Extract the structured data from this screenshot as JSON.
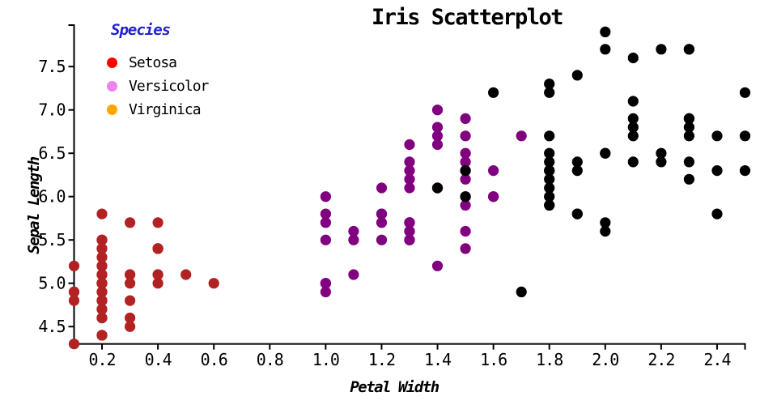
{
  "title": "Iris Scatterplot",
  "legend": {
    "title": "Species",
    "title_color": "#2222CC",
    "items": [
      {
        "label": "Setosa",
        "marker_color": "#FF0000"
      },
      {
        "label": "Versicolor",
        "marker_color": "#EE82EE"
      },
      {
        "label": "Virginica",
        "marker_color": "#FFA500"
      }
    ]
  },
  "chart_data": {
    "type": "scatter",
    "title": "Iris Scatterplot",
    "xlabel": "Petal Width",
    "ylabel": "Sepal Length",
    "xlim": [
      0.1,
      2.5
    ],
    "ylim": [
      4.3,
      7.9
    ],
    "xticks": [
      0.2,
      0.4,
      0.6,
      0.8,
      1.0,
      1.2,
      1.4,
      1.6,
      1.8,
      2.0,
      2.2,
      2.4
    ],
    "xtick_labels": [
      "0.2",
      "0.4",
      "0.6",
      "0.8",
      "1.0",
      "1.2",
      "1.4",
      "1.6",
      "1.8",
      "2.0",
      "2.2",
      "2.4"
    ],
    "yticks": [
      4.5,
      5.0,
      5.5,
      6.0,
      6.5,
      7.0,
      7.5
    ],
    "ytick_labels": [
      "4.5",
      "5.0",
      "5.5",
      "6.0",
      "6.5",
      "7.0",
      "7.5"
    ],
    "grid": false,
    "legend_position": "upper left inside",
    "axis_color": "#000000",
    "series": [
      {
        "name": "Setosa",
        "color": "#B22222",
        "points": [
          [
            0.2,
            5.1
          ],
          [
            0.2,
            4.9
          ],
          [
            0.2,
            4.7
          ],
          [
            0.2,
            4.6
          ],
          [
            0.2,
            5.0
          ],
          [
            0.4,
            5.4
          ],
          [
            0.3,
            4.6
          ],
          [
            0.2,
            5.0
          ],
          [
            0.2,
            4.4
          ],
          [
            0.1,
            4.9
          ],
          [
            0.2,
            5.4
          ],
          [
            0.2,
            4.8
          ],
          [
            0.1,
            4.8
          ],
          [
            0.1,
            4.3
          ],
          [
            0.2,
            5.8
          ],
          [
            0.4,
            5.7
          ],
          [
            0.4,
            5.4
          ],
          [
            0.3,
            5.1
          ],
          [
            0.3,
            5.7
          ],
          [
            0.3,
            5.1
          ],
          [
            0.2,
            5.4
          ],
          [
            0.4,
            5.1
          ],
          [
            0.2,
            4.6
          ],
          [
            0.5,
            5.1
          ],
          [
            0.2,
            4.8
          ],
          [
            0.2,
            5.0
          ],
          [
            0.4,
            5.0
          ],
          [
            0.2,
            5.2
          ],
          [
            0.2,
            5.2
          ],
          [
            0.2,
            4.7
          ],
          [
            0.2,
            4.8
          ],
          [
            0.4,
            5.4
          ],
          [
            0.1,
            5.2
          ],
          [
            0.2,
            5.5
          ],
          [
            0.2,
            4.9
          ],
          [
            0.2,
            5.0
          ],
          [
            0.2,
            5.5
          ],
          [
            0.1,
            4.9
          ],
          [
            0.2,
            4.4
          ],
          [
            0.2,
            5.1
          ],
          [
            0.3,
            5.0
          ],
          [
            0.3,
            4.5
          ],
          [
            0.2,
            4.4
          ],
          [
            0.6,
            5.0
          ],
          [
            0.4,
            5.1
          ],
          [
            0.3,
            4.8
          ],
          [
            0.2,
            5.1
          ],
          [
            0.2,
            4.6
          ],
          [
            0.2,
            5.3
          ],
          [
            0.2,
            5.0
          ]
        ]
      },
      {
        "name": "Versicolor",
        "color": "#800080",
        "points": [
          [
            1.4,
            7.0
          ],
          [
            1.5,
            6.4
          ],
          [
            1.5,
            6.9
          ],
          [
            1.3,
            5.5
          ],
          [
            1.5,
            6.5
          ],
          [
            1.3,
            5.7
          ],
          [
            1.6,
            6.3
          ],
          [
            1.0,
            4.9
          ],
          [
            1.3,
            6.6
          ],
          [
            1.4,
            5.2
          ],
          [
            1.0,
            5.0
          ],
          [
            1.5,
            5.9
          ],
          [
            1.0,
            6.0
          ],
          [
            1.4,
            6.1
          ],
          [
            1.3,
            5.6
          ],
          [
            1.4,
            6.7
          ],
          [
            1.5,
            5.6
          ],
          [
            1.0,
            5.8
          ],
          [
            1.5,
            6.2
          ],
          [
            1.1,
            5.6
          ],
          [
            1.8,
            5.9
          ],
          [
            1.3,
            6.1
          ],
          [
            1.5,
            6.3
          ],
          [
            1.2,
            6.1
          ],
          [
            1.3,
            6.4
          ],
          [
            1.4,
            6.6
          ],
          [
            1.4,
            6.8
          ],
          [
            1.7,
            6.7
          ],
          [
            1.5,
            6.0
          ],
          [
            1.0,
            5.7
          ],
          [
            1.1,
            5.5
          ],
          [
            1.0,
            5.5
          ],
          [
            1.2,
            5.8
          ],
          [
            1.6,
            6.0
          ],
          [
            1.5,
            5.4
          ],
          [
            1.6,
            6.0
          ],
          [
            1.5,
            6.7
          ],
          [
            1.3,
            6.3
          ],
          [
            1.3,
            5.6
          ],
          [
            1.3,
            5.5
          ],
          [
            1.2,
            5.5
          ],
          [
            1.4,
            6.1
          ],
          [
            1.2,
            5.8
          ],
          [
            1.0,
            5.0
          ],
          [
            1.3,
            5.6
          ],
          [
            1.2,
            5.7
          ],
          [
            1.3,
            5.7
          ],
          [
            1.3,
            6.2
          ],
          [
            1.1,
            5.1
          ],
          [
            1.3,
            5.7
          ]
        ]
      },
      {
        "name": "Virginica",
        "color": "#000000",
        "points": [
          [
            2.5,
            6.3
          ],
          [
            1.9,
            5.8
          ],
          [
            2.1,
            7.1
          ],
          [
            1.8,
            6.3
          ],
          [
            2.2,
            6.5
          ],
          [
            2.1,
            7.6
          ],
          [
            1.7,
            4.9
          ],
          [
            1.8,
            7.3
          ],
          [
            1.8,
            6.7
          ],
          [
            2.5,
            7.2
          ],
          [
            2.0,
            6.5
          ],
          [
            1.9,
            6.4
          ],
          [
            2.1,
            6.8
          ],
          [
            2.0,
            5.7
          ],
          [
            2.4,
            5.8
          ],
          [
            2.3,
            6.4
          ],
          [
            1.8,
            6.5
          ],
          [
            2.2,
            7.7
          ],
          [
            2.3,
            7.7
          ],
          [
            1.5,
            6.0
          ],
          [
            2.3,
            6.9
          ],
          [
            2.0,
            5.6
          ],
          [
            2.0,
            7.7
          ],
          [
            1.8,
            6.3
          ],
          [
            2.1,
            6.7
          ],
          [
            1.8,
            7.2
          ],
          [
            1.8,
            6.2
          ],
          [
            1.8,
            6.1
          ],
          [
            2.1,
            6.4
          ],
          [
            1.6,
            7.2
          ],
          [
            1.9,
            7.4
          ],
          [
            2.0,
            7.9
          ],
          [
            2.2,
            6.4
          ],
          [
            1.5,
            6.3
          ],
          [
            1.4,
            6.1
          ],
          [
            2.3,
            7.7
          ],
          [
            2.4,
            6.3
          ],
          [
            1.8,
            6.4
          ],
          [
            1.8,
            6.0
          ],
          [
            2.1,
            6.9
          ],
          [
            2.4,
            6.7
          ],
          [
            2.3,
            6.9
          ],
          [
            1.9,
            5.8
          ],
          [
            2.3,
            6.8
          ],
          [
            2.5,
            6.7
          ],
          [
            2.3,
            6.7
          ],
          [
            1.9,
            6.3
          ],
          [
            2.0,
            6.5
          ],
          [
            2.3,
            6.2
          ],
          [
            1.8,
            5.9
          ]
        ]
      }
    ]
  }
}
